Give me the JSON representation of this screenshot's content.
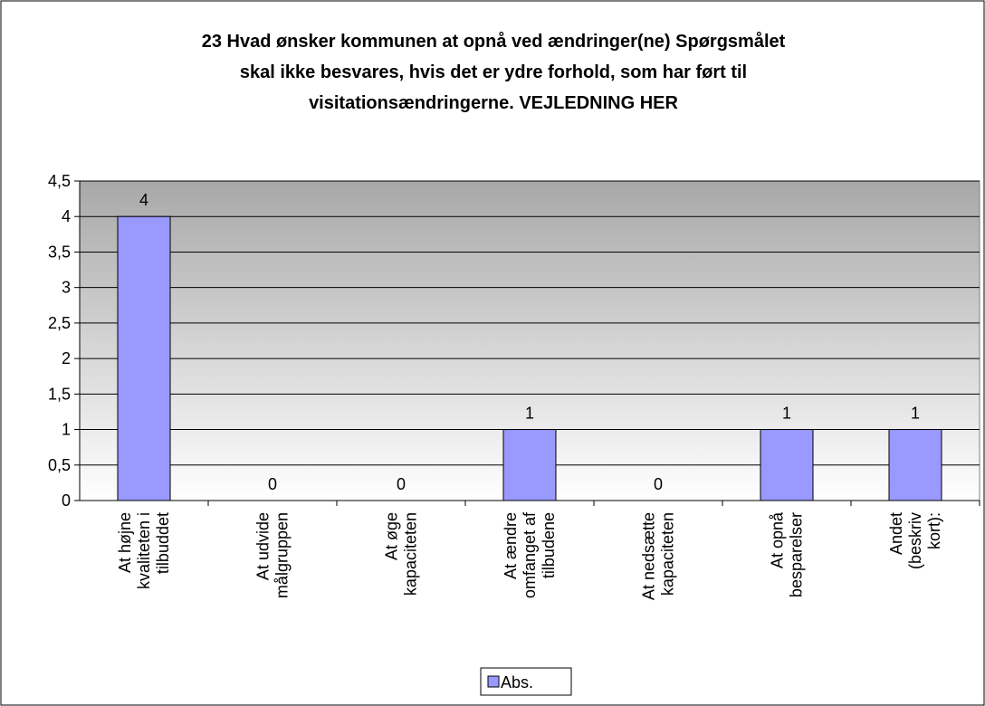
{
  "chart_data": {
    "type": "bar",
    "title": "23 Hvad ønsker kommunen at opnå ved ændringer(ne) Spørgsmålet skal ikke besvares, hvis det er ydre forhold, som har ført til visitationsændringerne. VEJLEDNING HER",
    "categories": [
      "At højne kvaliteten i tilbuddet",
      "At udvide målgruppen",
      "At øge kapaciteten",
      "At ændre omfanget af tilbudene",
      "At nedsætte kapaciteten",
      "At opnå besparelser",
      "Andet (beskriv kort):"
    ],
    "series": [
      {
        "name": "Abs.",
        "color": "#9999ff",
        "values": [
          4,
          0,
          0,
          1,
          0,
          1,
          1
        ]
      }
    ],
    "ylim": [
      0,
      4.5
    ],
    "yticks": [
      0,
      {
        "value": 0.5,
        "label": "0,5"
      },
      1,
      {
        "value": 1.5,
        "label": "1,5"
      },
      2,
      {
        "value": 2.5,
        "label": "2,5"
      },
      3,
      {
        "value": 3.5,
        "label": "3,5"
      },
      4,
      {
        "value": 4.5,
        "label": "4,5"
      }
    ],
    "grid": true,
    "legend": "bottom"
  }
}
